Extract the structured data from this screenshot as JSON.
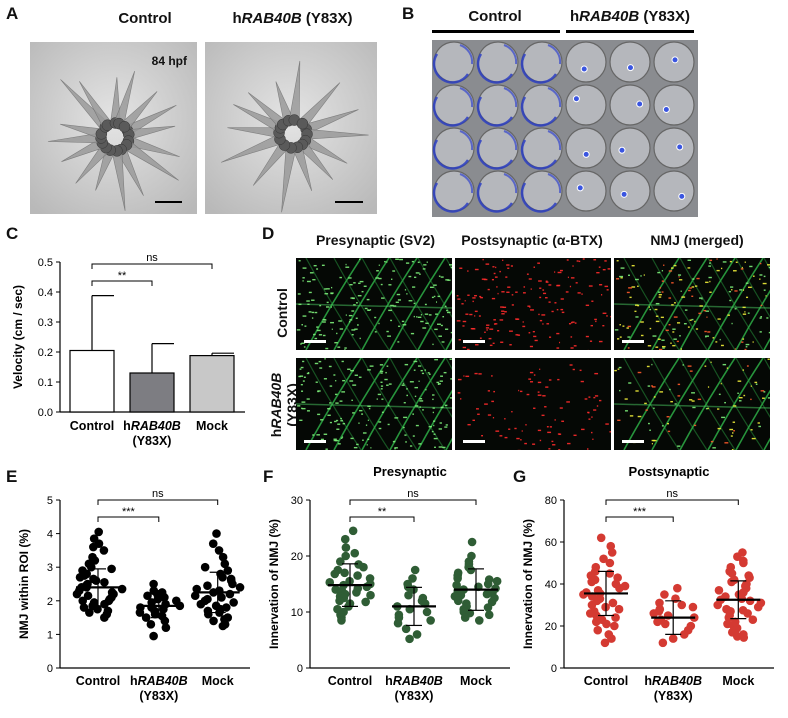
{
  "panels": {
    "A": {
      "label": "A",
      "control_title": "Control",
      "mutant_prefix": "h",
      "mutant_gene": "RAB40B",
      "mutant_suffix": " (Y83X)",
      "timepoint": "84 hpf"
    },
    "B": {
      "label": "B",
      "control_title": "Control",
      "mutant_prefix": "h",
      "mutant_gene": "RAB40B",
      "mutant_suffix": " (Y83X)"
    },
    "C": {
      "label": "C"
    },
    "D": {
      "label": "D",
      "col_titles": [
        "Presynaptic (SV2)",
        "Postsynaptic (α-BTX)",
        "NMJ (merged)"
      ],
      "row_control": "Control",
      "row_mutant_prefix": "h",
      "row_mutant_gene": "RAB40B",
      "row_mutant_suffix": "(Y83X)"
    },
    "E": {
      "label": "E"
    },
    "F": {
      "label": "F"
    },
    "G": {
      "label": "G"
    }
  },
  "chart_data": [
    {
      "id": "C",
      "type": "bar",
      "title": "",
      "ylabel": "Velocity (cm / sec)",
      "categories": [
        "Control",
        "hRAB40B (Y83X)",
        "Mock"
      ],
      "category_lines": [
        [
          "Control"
        ],
        [
          "h",
          "RAB40B",
          "(Y83X)"
        ],
        [
          "Mock"
        ]
      ],
      "values": [
        0.205,
        0.13,
        0.188
      ],
      "errors": [
        0.183,
        0.098,
        0.008
      ],
      "bar_colors": [
        "#ffffff",
        "#7d7d82",
        "#c8c8c8"
      ],
      "ylim": [
        0,
        0.5
      ],
      "yticks": [
        "0.0",
        "0.1",
        "0.2",
        "0.3",
        "0.4",
        "0.5"
      ],
      "significance": [
        {
          "from": 0,
          "to": 1,
          "label": "**"
        },
        {
          "from": 0,
          "to": 2,
          "label": "ns"
        }
      ]
    },
    {
      "id": "E",
      "type": "scatter",
      "title": "",
      "ylabel": "NMJ within ROI (%)",
      "categories": [
        "Control",
        "hRAB40B (Y83X)",
        "Mock"
      ],
      "category_lines": [
        [
          "Control"
        ],
        [
          "h",
          "RAB40B",
          "(Y83X)"
        ],
        [
          "Mock"
        ]
      ],
      "color": "#000000",
      "ylim": [
        0,
        5
      ],
      "yticks": [
        "0",
        "1",
        "2",
        "3",
        "4",
        "5"
      ],
      "means": [
        2.4,
        1.85,
        2.25
      ],
      "sds": [
        0.55,
        0.35,
        0.6
      ],
      "series": [
        {
          "values": [
            4.05,
            3.85,
            3.7,
            3.6,
            3.5,
            3.3,
            3.2,
            3.1,
            3.0,
            2.95,
            2.9,
            2.8,
            2.75,
            2.7,
            2.65,
            2.6,
            2.55,
            2.5,
            2.45,
            2.4,
            2.4,
            2.35,
            2.3,
            2.25,
            2.2,
            2.2,
            2.15,
            2.1,
            2.05,
            2.0,
            2.0,
            1.95,
            1.9,
            1.85,
            1.8,
            1.75,
            1.7,
            1.65,
            1.6,
            1.5
          ]
        },
        {
          "values": [
            2.5,
            2.3,
            2.25,
            2.2,
            2.15,
            2.1,
            2.05,
            2.0,
            1.95,
            1.9,
            1.85,
            1.8,
            1.8,
            1.75,
            1.7,
            1.65,
            1.6,
            1.55,
            1.5,
            1.4,
            1.3,
            1.2,
            0.95
          ]
        },
        {
          "values": [
            4.0,
            3.7,
            3.5,
            3.3,
            3.1,
            3.0,
            2.9,
            2.8,
            2.7,
            2.65,
            2.6,
            2.5,
            2.45,
            2.4,
            2.35,
            2.3,
            2.25,
            2.2,
            2.15,
            2.1,
            2.05,
            2.0,
            1.95,
            1.9,
            1.85,
            1.8,
            1.75,
            1.7,
            1.65,
            1.6,
            1.5,
            1.45,
            1.4,
            1.3,
            1.25
          ]
        }
      ],
      "significance": [
        {
          "from": 0,
          "to": 1,
          "label": "***"
        },
        {
          "from": 0,
          "to": 2,
          "label": "ns"
        }
      ]
    },
    {
      "id": "F",
      "type": "scatter",
      "title": "Presynaptic",
      "ylabel": "Innervation of NMJ (%)",
      "categories": [
        "Control",
        "hRAB40B (Y83X)",
        "Mock"
      ],
      "category_lines": [
        [
          "Control"
        ],
        [
          "h",
          "RAB40B",
          "(Y83X)"
        ],
        [
          "Mock"
        ]
      ],
      "color": "#2f5d35",
      "ylim": [
        0,
        30
      ],
      "yticks": [
        "0",
        "10",
        "20",
        "30"
      ],
      "means": [
        14.8,
        11.0,
        14.0
      ],
      "sds": [
        3.8,
        3.4,
        3.7
      ],
      "series": [
        {
          "values": [
            24.5,
            23.0,
            21.5,
            20.5,
            20.0,
            19.0,
            18.5,
            18.0,
            17.5,
            17.0,
            16.8,
            16.5,
            16.0,
            15.5,
            15.3,
            15.0,
            14.8,
            14.5,
            14.2,
            14.0,
            13.8,
            13.5,
            13.2,
            13.0,
            12.8,
            12.5,
            12.0,
            11.8,
            11.5,
            11.0,
            10.5,
            10.0,
            9.5,
            9.0,
            8.5
          ]
        },
        {
          "values": [
            17.5,
            16.0,
            15.0,
            14.5,
            14.0,
            13.0,
            12.5,
            12.0,
            11.5,
            11.0,
            10.5,
            10.0,
            9.5,
            9.0,
            8.5,
            8.0,
            7.0,
            6.0,
            5.2
          ]
        },
        {
          "values": [
            22.5,
            20.0,
            19.0,
            18.5,
            18.0,
            17.5,
            17.0,
            16.5,
            16.0,
            15.8,
            15.5,
            15.0,
            14.8,
            14.5,
            14.2,
            14.0,
            13.8,
            13.5,
            13.2,
            13.0,
            12.8,
            12.5,
            12.0,
            11.8,
            11.5,
            11.0,
            10.8,
            10.5,
            10.0,
            9.8,
            9.5,
            9.0,
            8.5
          ]
        }
      ],
      "significance": [
        {
          "from": 0,
          "to": 1,
          "label": "**"
        },
        {
          "from": 0,
          "to": 2,
          "label": "ns"
        }
      ]
    },
    {
      "id": "G",
      "type": "scatter",
      "title": "Postsynaptic",
      "ylabel": "Innervation of NMJ (%)",
      "categories": [
        "Control",
        "hRAB40B (Y83X)",
        "Mock"
      ],
      "category_lines": [
        [
          "Control"
        ],
        [
          "h",
          "RAB40B",
          "(Y83X)"
        ],
        [
          "Mock"
        ]
      ],
      "color": "#d43a32",
      "ylim": [
        0,
        80
      ],
      "yticks": [
        "0",
        "20",
        "40",
        "60",
        "80"
      ],
      "means": [
        35.5,
        24.0,
        32.5
      ],
      "sds": [
        10.5,
        8.0,
        9.0
      ],
      "series": [
        {
          "values": [
            62,
            58,
            55,
            52,
            50,
            48,
            46,
            45,
            44,
            43,
            42,
            41,
            40,
            39,
            38,
            37,
            36,
            35.5,
            35,
            34,
            33,
            32,
            31,
            30,
            29,
            28,
            27,
            26,
            25,
            24,
            23,
            22,
            21,
            20,
            18,
            16,
            14,
            12
          ]
        },
        {
          "values": [
            38,
            35,
            33,
            31,
            30,
            29,
            28,
            27,
            26,
            25,
            24,
            23,
            22,
            21,
            20,
            18,
            16,
            14,
            12
          ]
        },
        {
          "values": [
            55,
            53,
            51,
            50,
            48,
            46,
            45,
            44,
            43,
            42,
            41,
            40,
            39,
            38,
            37,
            36,
            35,
            34,
            33,
            32.5,
            32,
            31,
            30,
            29,
            28,
            27.5,
            27,
            26,
            25,
            24,
            23,
            22,
            21,
            20,
            19,
            18,
            17,
            16,
            15,
            14.5
          ]
        }
      ],
      "significance": [
        {
          "from": 0,
          "to": 1,
          "label": "***"
        },
        {
          "from": 0,
          "to": 2,
          "label": "ns"
        }
      ]
    }
  ]
}
